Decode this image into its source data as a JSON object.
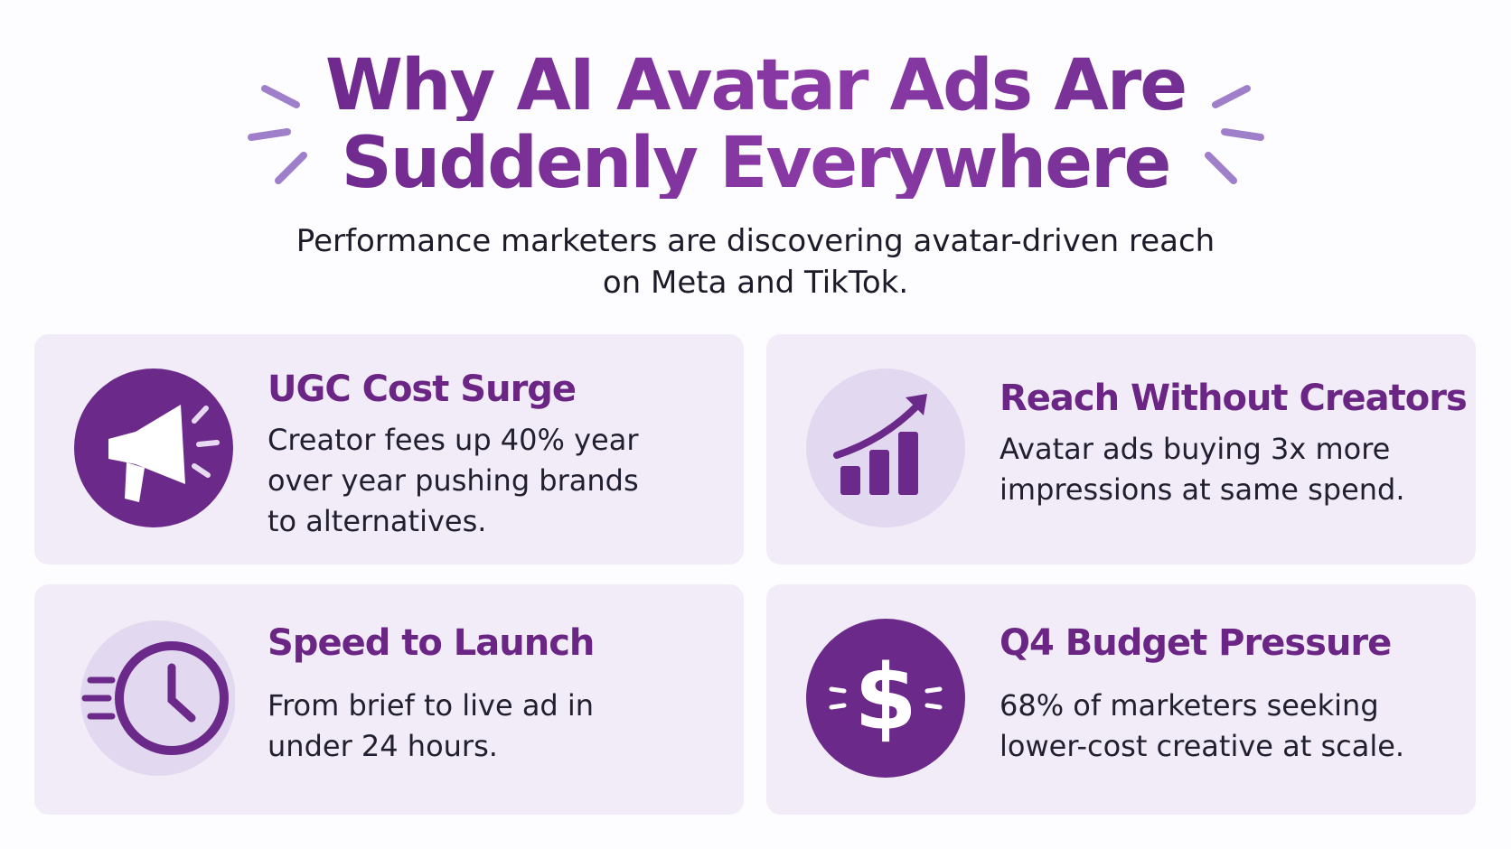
{
  "header": {
    "title_lines": [
      "Why AI Avatar Ads Are",
      "Suddenly Everywhere"
    ],
    "subtitle": "Performance marketers are discovering avatar-driven reach on Meta and TikTok."
  },
  "cards": [
    {
      "title": "UGC Cost Surge",
      "text": "Creator fees up 40% year over year pushing brands to alternatives."
    },
    {
      "title": "Reach Without Creators",
      "text": "Avatar ads buying 3x more impressions at same spend."
    },
    {
      "title": "Speed to Launch",
      "text": "From brief to live ad in under 24 hours."
    },
    {
      "title": "Q4 Budget Pressure",
      "text": "68% of marketers seeking lower-cost creative at scale."
    }
  ]
}
